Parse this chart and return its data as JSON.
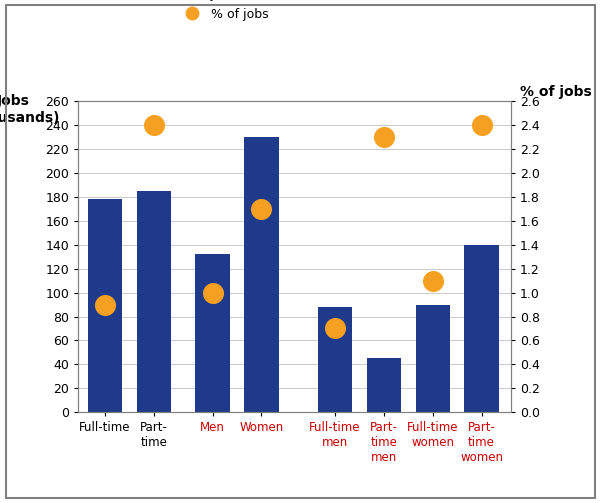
{
  "categories": [
    "Full-time",
    "Part-\ntime",
    "Men",
    "Women",
    "Full-time\nmen",
    "Part-\ntime\nmen",
    "Full-time\nwomen",
    "Part-\ntime\nwomen"
  ],
  "bar_values": [
    178,
    185,
    132,
    230,
    88,
    45,
    90,
    140
  ],
  "dot_values": [
    0.9,
    2.4,
    1.0,
    1.7,
    0.7,
    2.3,
    1.1,
    2.4
  ],
  "bar_color": "#1F3A8A",
  "dot_color": "#F5A020",
  "ylabel_left": "Jobs\n(thousands)",
  "ylabel_right": "% of jobs",
  "ylim_left": [
    0,
    260
  ],
  "ylim_right": [
    0,
    2.6
  ],
  "yticks_left": [
    0,
    20,
    40,
    60,
    80,
    100,
    120,
    140,
    160,
    180,
    200,
    220,
    240,
    260
  ],
  "yticks_right": [
    0.0,
    0.2,
    0.4,
    0.6,
    0.8,
    1.0,
    1.2,
    1.4,
    1.6,
    1.8,
    2.0,
    2.2,
    2.4,
    2.6
  ],
  "legend_bar_label": "Jobs (thousands)",
  "legend_dot_label": "% of jobs",
  "x_positions": [
    0,
    1,
    2.2,
    3.2,
    4.7,
    5.7,
    6.7,
    7.7
  ],
  "bar_width": 0.7,
  "background_color": "#FFFFFF",
  "tick_colors": [
    "#000000",
    "#000000",
    "#CC0000",
    "#CC0000",
    "#CC0000",
    "#CC0000",
    "#CC0000",
    "#CC0000"
  ],
  "xlim": [
    -0.55,
    8.3
  ]
}
